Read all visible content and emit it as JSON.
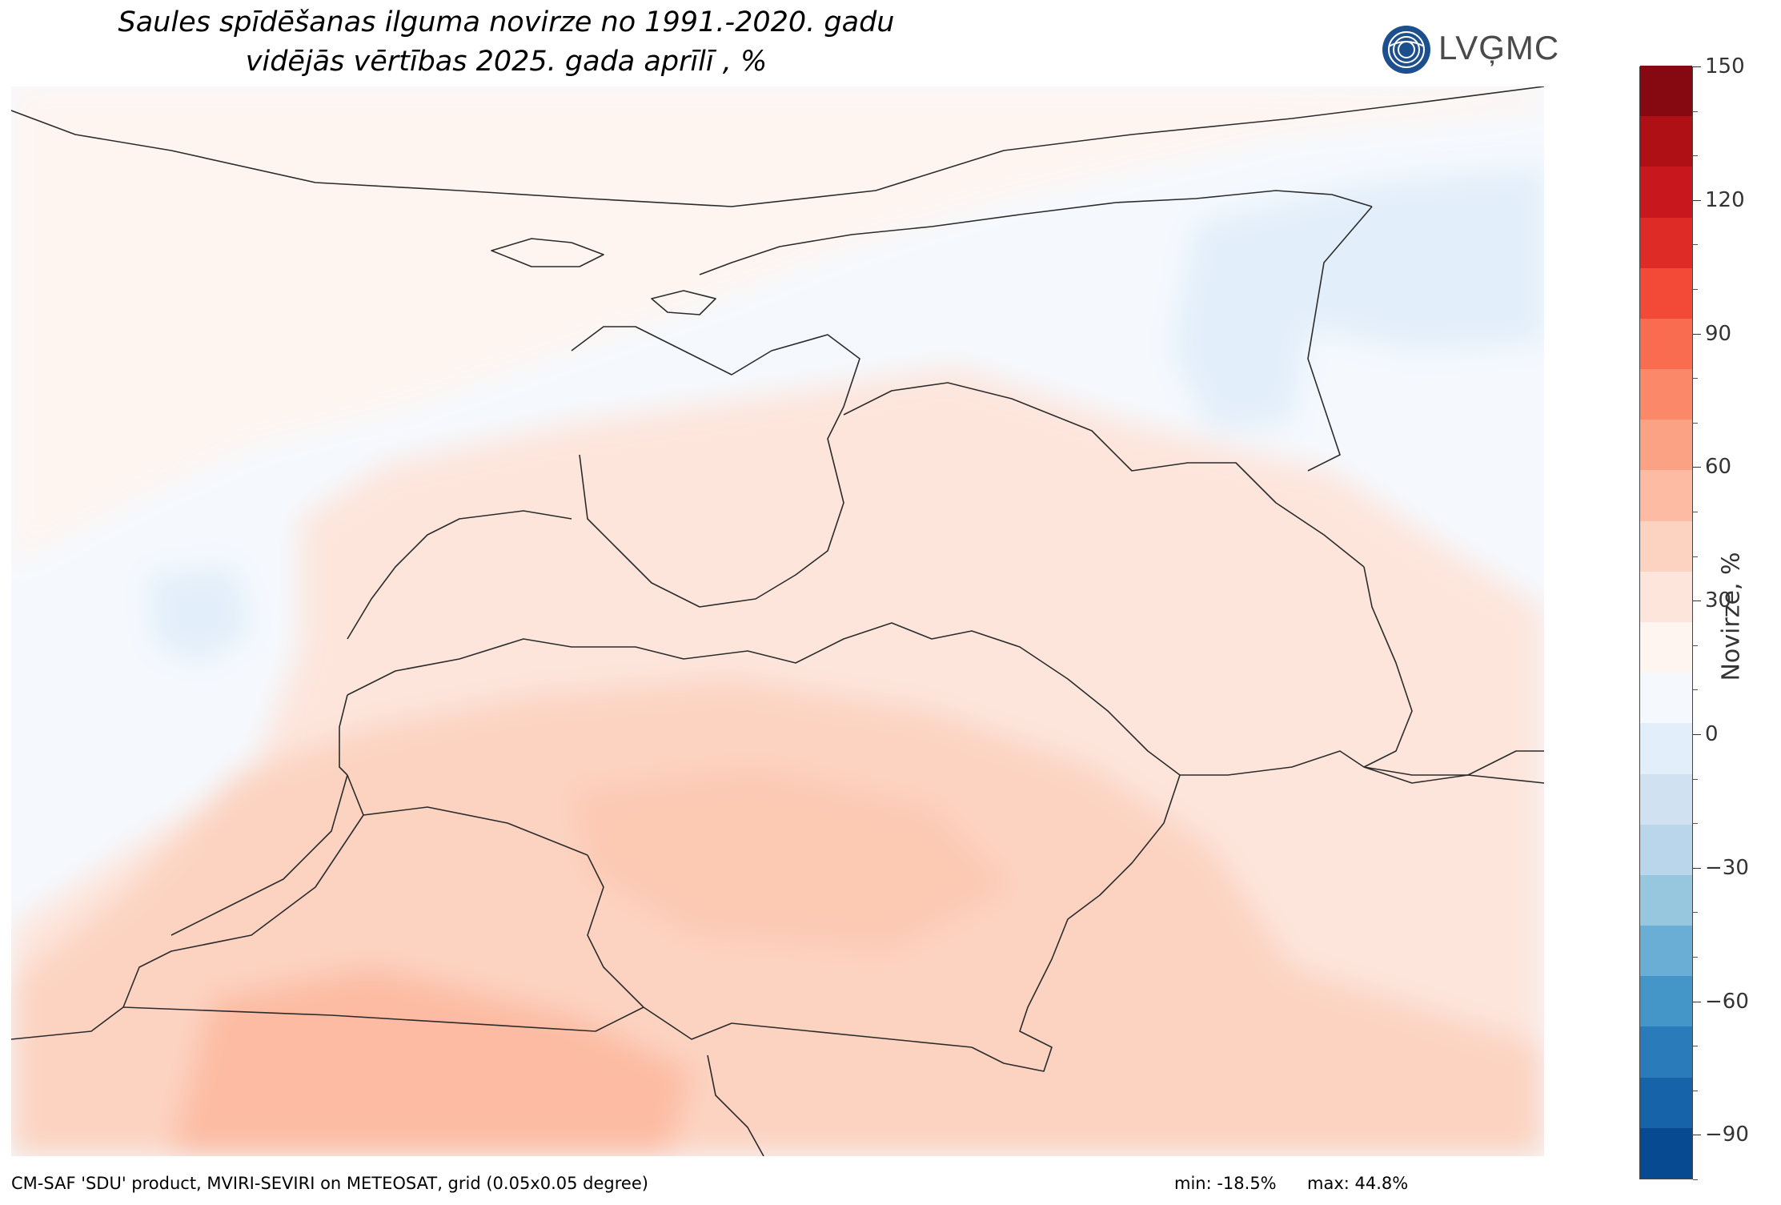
{
  "title": {
    "line1": "Saules spīdēšanas ilguma novirze no 1991.-2020. gadu",
    "line2": "vidējās vērtības 2025. gada aprīlī , %"
  },
  "logo": {
    "text": "LVĢMC",
    "color": "#1d4f8c"
  },
  "colorbar": {
    "label": "Novirze, %",
    "range": [
      -100,
      150
    ],
    "step": 10,
    "tick_labels": [
      "150",
      "120",
      "90",
      "60",
      "30",
      "0",
      "−30",
      "−60",
      "−90"
    ],
    "tick_values": [
      150,
      120,
      90,
      60,
      30,
      0,
      -30,
      -60,
      -90
    ],
    "colors_low_to_high": [
      "#084a92",
      "#1763aa",
      "#2a7bba",
      "#4596c8",
      "#6aaed5",
      "#97c6df",
      "#bad6eb",
      "#d0e1f2",
      "#e2eef9",
      "#f5f9fe",
      "#fef5f1",
      "#fde5dc",
      "#fcd3c1",
      "#fcbba2",
      "#fca284",
      "#fb8969",
      "#f96c50",
      "#f24a37",
      "#de2b26",
      "#c8171d",
      "#ae1016",
      "#860811"
    ]
  },
  "map": {
    "value_range": {
      "min": -18.5,
      "max": 44.8
    },
    "regions": [
      {
        "name": "sea-and-south-finland",
        "approx_anomaly": 0
      },
      {
        "name": "estonia",
        "approx_anomaly": 5
      },
      {
        "name": "east-russia",
        "approx_anomaly": -12
      },
      {
        "name": "latvia",
        "approx_anomaly": 15
      },
      {
        "name": "lithuania",
        "approx_anomaly": 25
      },
      {
        "name": "poland-belarus",
        "approx_anomaly": 25
      }
    ]
  },
  "footer": {
    "source": "CM-SAF 'SDU' product, MVIRI-SEVIRI on METEOSAT, grid (0.05x0.05 degree)",
    "min": "min: -18.5%",
    "max": "max: 44.8%"
  }
}
